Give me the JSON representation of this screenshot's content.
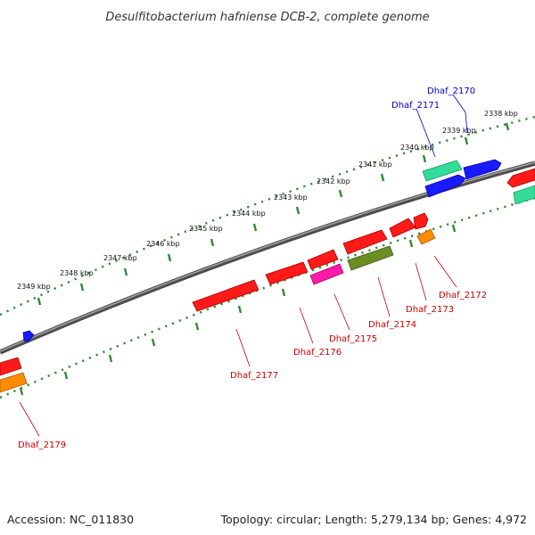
{
  "title": "Desulfitobacterium hafniense DCB-2, complete genome",
  "footer": {
    "accession": "Accession: NC_011830",
    "topology": "Topology: circular; Length: 5,279,134 bp; Genes: 4,972"
  },
  "colors": {
    "backbone": "#808080",
    "tick_dots": "#2e8b2e",
    "label_forward": "#0000cc",
    "label_reverse": "#cc0000",
    "gene_red": "#ff1a1a",
    "gene_blue": "#1a1aff",
    "gene_green": "#33dd99",
    "gene_magenta": "#ff1aaa",
    "gene_orange": "#ff8c00",
    "gene_olive": "#6b8e23"
  },
  "ruler_labels": [
    "2338 kbp",
    "2339 kbp",
    "2340 kbp",
    "2341 kbp",
    "2342 kbp",
    "2343 kbp",
    "2344 kbp",
    "2345 kbp",
    "2346 kbp",
    "2347 kbp",
    "2348 kbp",
    "2349 kbp"
  ],
  "gene_labels": {
    "forward": [
      "Dhaf_2170",
      "Dhaf_2171"
    ],
    "reverse": [
      "Dhaf_2172",
      "Dhaf_2173",
      "Dhaf_2174",
      "Dhaf_2175",
      "Dhaf_2176",
      "Dhaf_2177",
      "Dhaf_2179"
    ]
  }
}
